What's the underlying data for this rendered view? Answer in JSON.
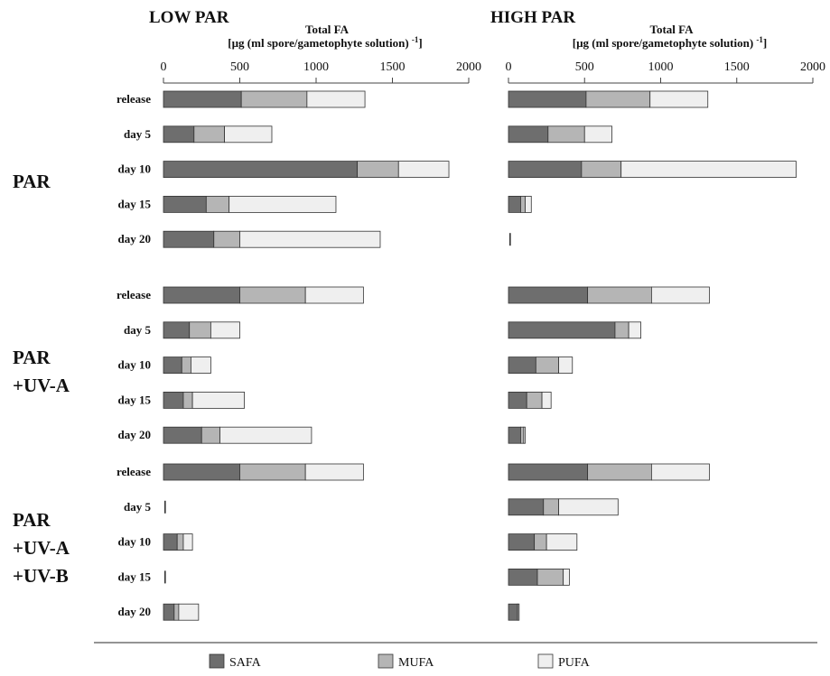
{
  "chart_data": {
    "type": "bar",
    "orientation": "horizontal",
    "stacked": true,
    "axis_title_line1": "Total FA",
    "axis_title_line2": "[µg (ml spore/gametophyte solution) ",
    "axis_title_sup": "-1",
    "axis_title_end": "]",
    "xlim": [
      0,
      2000
    ],
    "xticks": [
      "0",
      "500",
      "1000",
      "1500",
      "2000"
    ],
    "xtick_values": [
      0,
      500,
      1000,
      1500,
      2000
    ],
    "series_names": [
      "SAFA",
      "MUFA",
      "PUFA"
    ],
    "series_colors": [
      "#6e6e6e",
      "#b5b5b5",
      "#efefef"
    ],
    "groups": [
      {
        "label_lines": [
          "PAR"
        ],
        "rows": [
          "release",
          "day 5",
          "day 10",
          "day 15",
          "day 20"
        ]
      },
      {
        "label_lines": [
          "PAR",
          "+UV-A"
        ],
        "rows": [
          "release",
          "day 5",
          "day 10",
          "day 15",
          "day 20"
        ]
      },
      {
        "label_lines": [
          "PAR",
          "+UV-A",
          "+UV-B"
        ],
        "rows": [
          "release",
          "day 5",
          "day 10",
          "day 15",
          "day 20"
        ]
      }
    ],
    "panels": [
      {
        "title": "LOW PAR",
        "groups": [
          [
            [
              510,
              430,
              380
            ],
            [
              200,
              200,
              310
            ],
            [
              1270,
              270,
              330
            ],
            [
              280,
              150,
              700
            ],
            [
              330,
              170,
              920
            ]
          ],
          [
            [
              500,
              430,
              380
            ],
            [
              170,
              140,
              190
            ],
            [
              120,
              60,
              130
            ],
            [
              130,
              60,
              340
            ],
            [
              250,
              120,
              600
            ]
          ],
          [
            [
              500,
              430,
              380
            ],
            [
              0,
              0,
              0
            ],
            [
              90,
              40,
              60
            ],
            [
              0,
              0,
              0
            ],
            [
              70,
              30,
              130
            ]
          ]
        ]
      },
      {
        "title": "HIGH PAR",
        "groups": [
          [
            [
              510,
              420,
              380
            ],
            [
              260,
              240,
              180
            ],
            [
              480,
              260,
              1150
            ],
            [
              80,
              30,
              40
            ],
            [
              0,
              0,
              0
            ]
          ],
          [
            [
              520,
              420,
              380
            ],
            [
              700,
              90,
              80
            ],
            [
              180,
              150,
              90
            ],
            [
              120,
              100,
              60
            ],
            [
              80,
              20,
              10
            ]
          ],
          [
            [
              520,
              420,
              380
            ],
            [
              230,
              100,
              390
            ],
            [
              170,
              80,
              200
            ],
            [
              190,
              170,
              40
            ],
            [
              60,
              10,
              0
            ]
          ]
        ]
      }
    ]
  }
}
